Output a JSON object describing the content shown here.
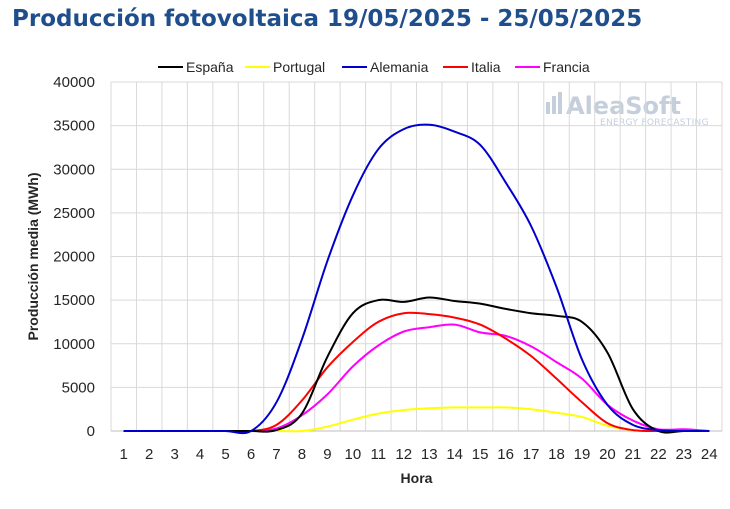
{
  "page": {
    "title": "Producción fotovoltaica 19/05/2025 - 25/05/2025",
    "title_color": "#1f4e8c"
  },
  "watermark": {
    "brand": "AleaSoft",
    "tagline": "ENERGY FORECASTING"
  },
  "chart_data": {
    "type": "line",
    "title": "Producción fotovoltaica 19/05/2025 - 25/05/2025",
    "xlabel": "Hora",
    "ylabel": "Producción media (MWh)",
    "x": [
      1,
      2,
      3,
      4,
      5,
      6,
      7,
      8,
      9,
      10,
      11,
      12,
      13,
      14,
      15,
      16,
      17,
      18,
      19,
      20,
      21,
      22,
      23,
      24
    ],
    "xlim": [
      0.5,
      24.5
    ],
    "ylim": [
      0,
      40000
    ],
    "yticks": [
      0,
      5000,
      10000,
      15000,
      20000,
      25000,
      30000,
      35000,
      40000
    ],
    "grid": true,
    "legend_position": "top",
    "series": [
      {
        "name": "España",
        "color": "#000000",
        "values": [
          0,
          0,
          0,
          0,
          0,
          0,
          100,
          2000,
          8500,
          13500,
          15000,
          14800,
          15300,
          14900,
          14600,
          14000,
          13500,
          13200,
          12500,
          9000,
          2500,
          0,
          0,
          0
        ]
      },
      {
        "name": "Portugal",
        "color": "#ffff00",
        "values": [
          0,
          0,
          0,
          0,
          0,
          0,
          0,
          0,
          500,
          1300,
          2000,
          2400,
          2600,
          2700,
          2700,
          2700,
          2500,
          2100,
          1600,
          600,
          100,
          0,
          0,
          0
        ]
      },
      {
        "name": "Alemania",
        "color": "#0000cd",
        "values": [
          0,
          0,
          0,
          0,
          0,
          0,
          3300,
          10500,
          19500,
          27000,
          32300,
          34600,
          35100,
          34300,
          32800,
          28500,
          23500,
          16500,
          8200,
          3000,
          700,
          100,
          0,
          0
        ]
      },
      {
        "name": "Italia",
        "color": "#ff0000",
        "values": [
          0,
          0,
          0,
          0,
          0,
          0,
          700,
          3500,
          7300,
          10200,
          12500,
          13500,
          13400,
          13000,
          12200,
          10600,
          8600,
          6000,
          3300,
          900,
          100,
          0,
          0,
          0
        ]
      },
      {
        "name": "Francia",
        "color": "#ff00ff",
        "values": [
          0,
          0,
          0,
          0,
          0,
          0,
          300,
          1800,
          4200,
          7400,
          9800,
          11400,
          11900,
          12200,
          11300,
          10900,
          9700,
          7900,
          6000,
          3000,
          1200,
          200,
          200,
          0
        ]
      }
    ]
  }
}
